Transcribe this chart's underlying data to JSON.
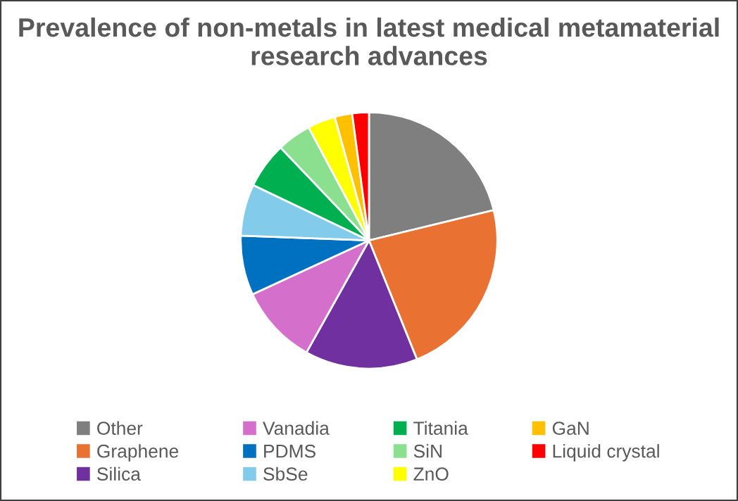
{
  "chart_data": {
    "type": "pie",
    "title": "Prevalence of non-metals in latest medical metamaterial research advances",
    "categories": [
      "Other",
      "Graphene",
      "Silica",
      "Vanadia",
      "PDMS",
      "SbSe",
      "Titania",
      "SiN",
      "ZnO",
      "GaN",
      "Liquid crystal"
    ],
    "values": [
      21.2,
      22.7,
      14.2,
      10.0,
      7.5,
      6.5,
      5.8,
      4.3,
      3.5,
      2.2,
      2.1
    ],
    "colors": [
      "#7f7f7f",
      "#e97132",
      "#7030a0",
      "#d46fcc",
      "#0070c0",
      "#83cbeb",
      "#00b050",
      "#8ae08f",
      "#ffff00",
      "#ffc000",
      "#ff0000"
    ],
    "legend": "bottom"
  }
}
